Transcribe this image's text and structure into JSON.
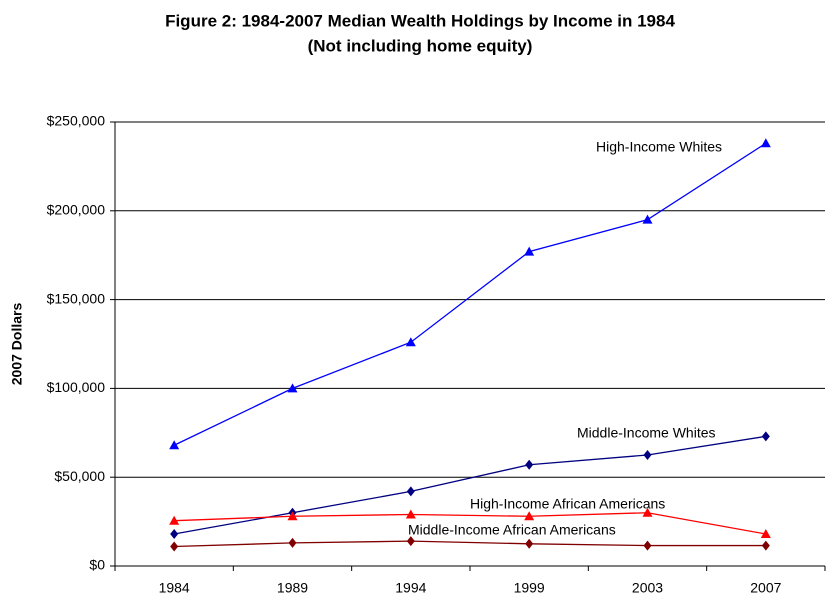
{
  "chart_data": {
    "type": "line",
    "title": "Figure 2: 1984-2007 Median Wealth Holdings by Income  in 1984",
    "subtitle": "(Not including home equity)",
    "y_label": "2007 Dollars",
    "categories": [
      "1984",
      "1989",
      "1994",
      "1999",
      "2003",
      "2007"
    ],
    "ylim": [
      0,
      250000
    ],
    "yticks": [
      {
        "value": 0,
        "label": "$0"
      },
      {
        "value": 50000,
        "label": "$50,000"
      },
      {
        "value": 100000,
        "label": "$100,000"
      },
      {
        "value": 150000,
        "label": "$150,000"
      },
      {
        "value": 200000,
        "label": "$200,000"
      },
      {
        "value": 250000,
        "label": "$250,000"
      }
    ],
    "grid": true,
    "series": [
      {
        "name": "High-Income Whites",
        "color": "#0000ff",
        "marker": "triangle",
        "values": [
          68000,
          100000,
          126000,
          177000,
          195000,
          238000
        ]
      },
      {
        "name": "Middle-Income Whites",
        "color": "#000080",
        "marker": "diamond",
        "values": [
          18000,
          30000,
          42000,
          57000,
          62500,
          73000
        ]
      },
      {
        "name": "High-Income African Americans",
        "color": "#ff0000",
        "marker": "triangle",
        "values": [
          25500,
          28000,
          29000,
          28000,
          30000,
          18000
        ]
      },
      {
        "name": "Middle-Income African Americans",
        "color": "#800000",
        "marker": "diamond",
        "values": [
          11000,
          13000,
          14000,
          12500,
          11500,
          11500
        ]
      }
    ]
  }
}
